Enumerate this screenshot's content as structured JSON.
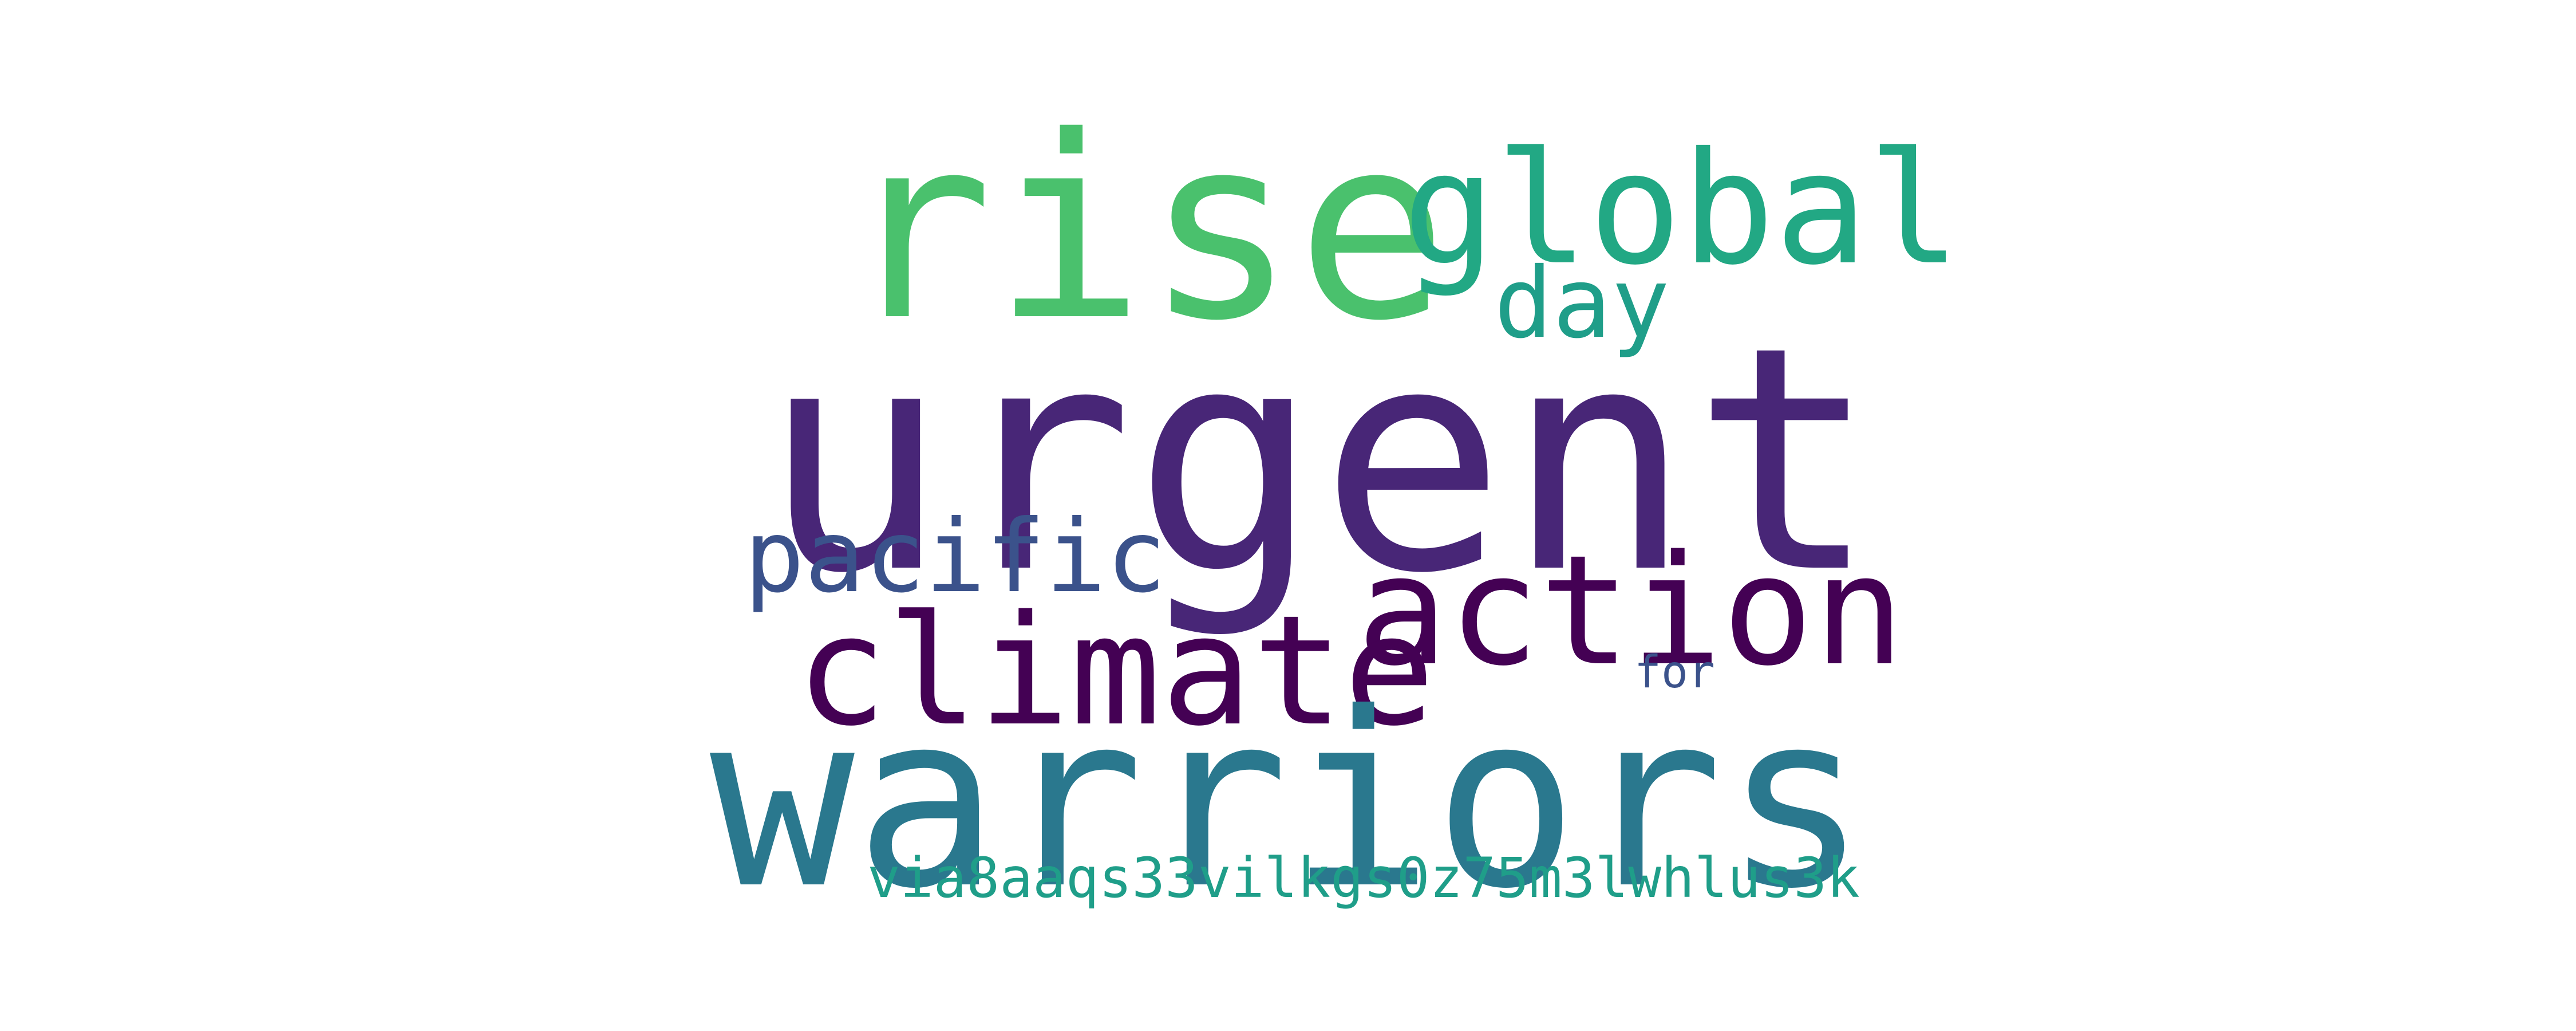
{
  "words": {
    "urgent": {
      "text": "urgent",
      "color": "#482677"
    },
    "warriors": {
      "text": "warriors",
      "color": "#2a788e"
    },
    "rise": {
      "text": "rise",
      "color": "#4ac16d"
    },
    "global": {
      "text": "global",
      "color": "#22a884"
    },
    "action": {
      "text": "action",
      "color": "#440154"
    },
    "climate": {
      "text": "climate",
      "color": "#440154"
    },
    "pacific": {
      "text": "pacific",
      "color": "#3b528b"
    },
    "day": {
      "text": "day",
      "color": "#1f9e89"
    },
    "for": {
      "text": "for",
      "color": "#3b528b"
    },
    "via": {
      "text": "via8aaqs33vilkgs0z75m3lwhlus3k",
      "color": "#1f9e89"
    }
  }
}
